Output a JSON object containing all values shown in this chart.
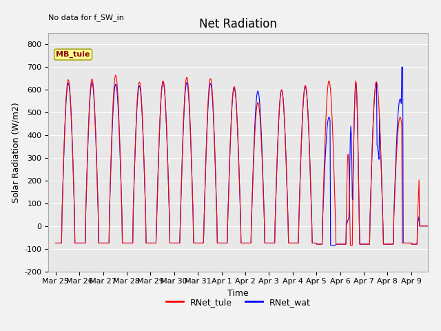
{
  "title": "Net Radiation",
  "xlabel": "Time",
  "ylabel": "Solar Radiation (W/m2)",
  "annotation_text": "No data for f_SW_in",
  "legend_box_text": "MB_tule",
  "ylim": [
    -200,
    850
  ],
  "yticks": [
    -200,
    -100,
    0,
    100,
    200,
    300,
    400,
    500,
    600,
    700,
    800
  ],
  "xtick_labels": [
    "Mar 25",
    "Mar 26",
    "Mar 27",
    "Mar 28",
    "Mar 29",
    "Mar 30",
    "Mar 31",
    "Apr 1",
    "Apr 2",
    "Apr 3",
    "Apr 4",
    "Apr 5",
    "Apr 6",
    "Apr 7",
    "Apr 8",
    "Apr 9"
  ],
  "line1_color": "#FF0000",
  "line2_color": "#0000FF",
  "line1_label": "RNet_tule",
  "line2_label": "RNet_wat",
  "background_color": "#E8E8E8",
  "grid_color": "#FFFFFF",
  "title_fontsize": 12,
  "label_fontsize": 9,
  "tick_fontsize": 8,
  "legend_box_color": "#FFFF99",
  "legend_box_edge": "#999900",
  "fig_bg_color": "#F2F2F2"
}
